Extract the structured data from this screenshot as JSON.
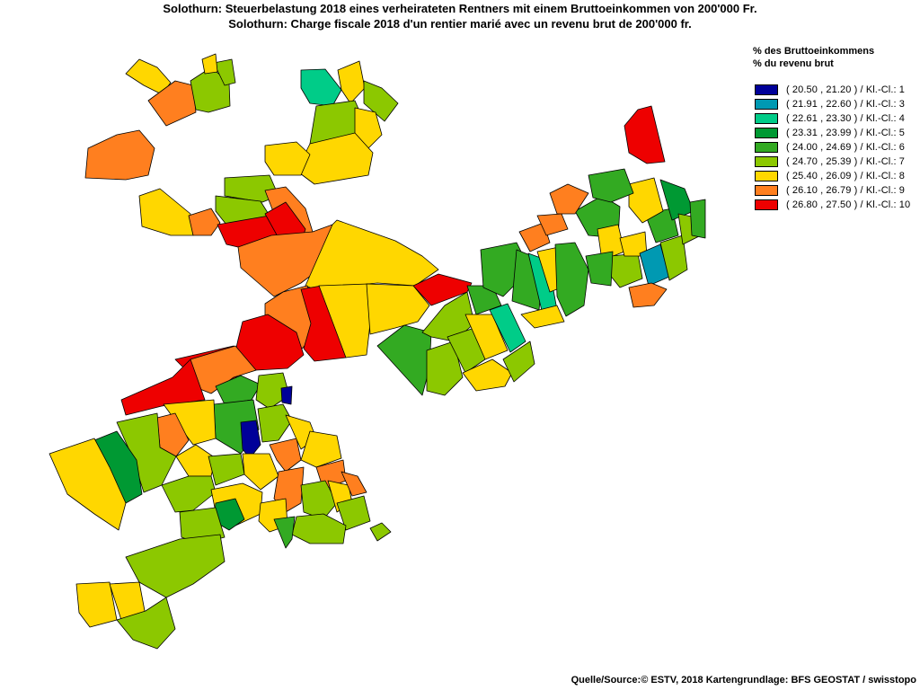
{
  "title": {
    "line1": "Solothurn: Steuerbelastung 2018 eines verheirateten Rentners mit einem Bruttoeinkommen von 200'000 Fr.",
    "line2": "Solothurn: Charge fiscale 2018 d'un rentier marié avec un revenu brut de 200'000 fr."
  },
  "legend": {
    "heading1": "% des Bruttoeinkommens",
    "heading2": "% du revenu brut",
    "classes": [
      {
        "label": "( 20.50 , 21.20 ) / Kl.-Cl.: 1",
        "color": "#000099"
      },
      {
        "label": "( 21.91 , 22.60 ) / Kl.-Cl.: 3",
        "color": "#0099B2"
      },
      {
        "label": "( 22.61 , 23.30 ) / Kl.-Cl.: 4",
        "color": "#00CC88"
      },
      {
        "label": "( 23.31 , 23.99 ) / Kl.-Cl.: 5",
        "color": "#009933"
      },
      {
        "label": "( 24.00 , 24.69 ) / Kl.-Cl.: 6",
        "color": "#33AA22"
      },
      {
        "label": "( 24.70 , 25.39 ) / Kl.-Cl.: 7",
        "color": "#8CC800"
      },
      {
        "label": "( 25.40 , 26.09 ) / Kl.-Cl.: 8",
        "color": "#FFD700"
      },
      {
        "label": "( 26.10 , 26.79 ) / Kl.-Cl.: 9",
        "color": "#FF7F1F"
      },
      {
        "label": "( 26.80 , 27.50 ) / Kl.-Cl.: 10",
        "color": "#EE0000"
      }
    ]
  },
  "source": "Quelle/Source:© ESTV, 2018 Kartengrundlage: BFS GEOSTAT / swisstopo"
}
